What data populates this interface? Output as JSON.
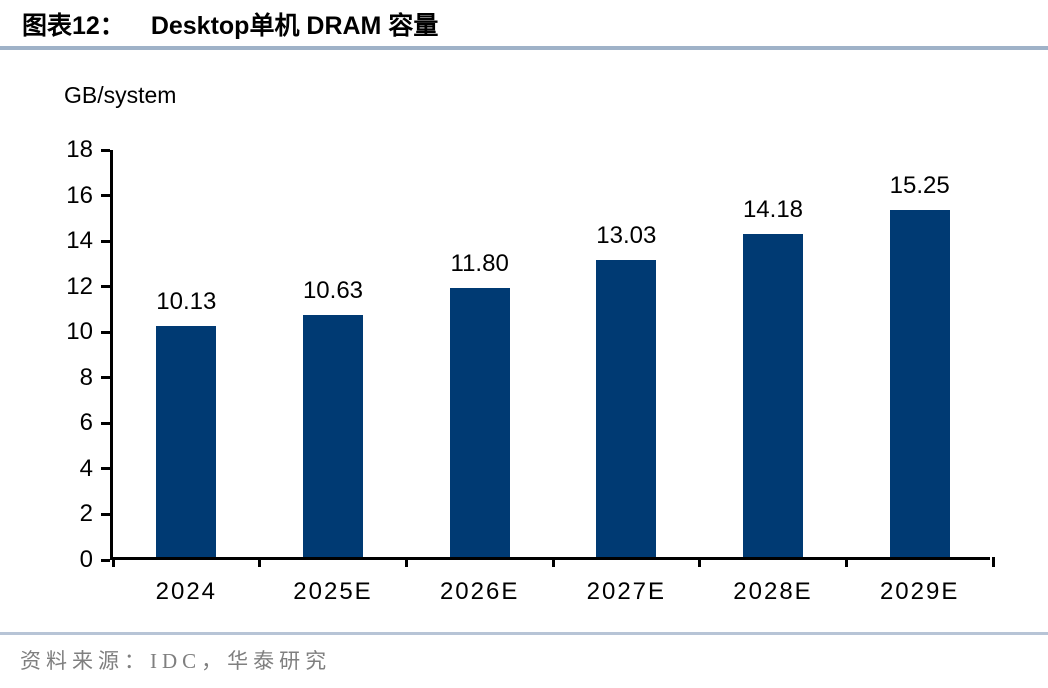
{
  "header": {
    "tag": "图表12：",
    "title": "Desktop单机 DRAM 容量"
  },
  "chart_data": {
    "type": "bar",
    "title": "Desktop单机 DRAM 容量",
    "unit_label": "GB/system",
    "categories": [
      "2024",
      "2025E",
      "2026E",
      "2027E",
      "2028E",
      "2029E"
    ],
    "values": [
      10.13,
      10.63,
      11.8,
      13.03,
      14.18,
      15.25
    ],
    "value_labels": [
      "10.13",
      "10.63",
      "11.80",
      "13.03",
      "14.18",
      "15.25"
    ],
    "xlabel": "",
    "ylabel": "GB/system",
    "ylim": [
      0,
      18
    ],
    "ytick_step": 2,
    "grid": false,
    "legend": "none",
    "bar_color": "#003a73"
  },
  "footer": {
    "source_text": "资料来源：IDC，华泰研究"
  },
  "colors": {
    "bar": "#003a73",
    "title_underline": "#9fb2c8",
    "footer_rule": "#b7c4d6",
    "source_text": "#7f7f7f",
    "axis": "#000000"
  }
}
